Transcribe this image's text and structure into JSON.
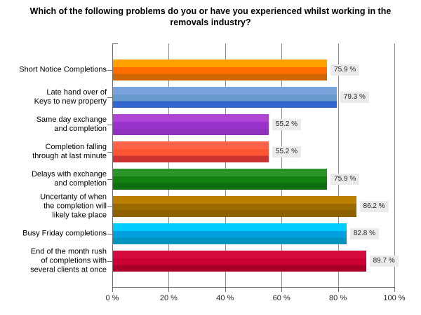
{
  "page": {
    "background": "#ffffff"
  },
  "chart_data": {
    "type": "bar",
    "orientation": "horizontal",
    "title": "Which of the following problems do you or have you experienced whilst working in the removals industry?",
    "categories": [
      "Short Notice Completions",
      "Late hand over of\nKeys to new property",
      "Same day exchange\nand completion",
      "Completion falling\nthrough at last minute",
      "Delays with exchange\nand completion",
      "Uncertanty of when\nthe completion will\nlikely take place",
      "Busy Friday completions",
      "End of the month rush\nof completions with\nseveral clients at once"
    ],
    "values": [
      75.9,
      79.3,
      55.2,
      55.2,
      75.9,
      86.2,
      82.8,
      89.7
    ],
    "value_labels": [
      "75.9 %",
      "79.3 %",
      "55.2 %",
      "55.2 %",
      "75.9 %",
      "86.2 %",
      "82.8 %",
      "89.7 %"
    ],
    "bar_colors": [
      {
        "light": "#FFA000",
        "mid": "#FF6D00",
        "dark": "#CE6700"
      },
      {
        "light": "#7AA3DC",
        "mid": "#6699CC",
        "dark": "#3366CC"
      },
      {
        "light": "#B044D4",
        "mid": "#9933CC",
        "dark": "#9030BF"
      },
      {
        "light": "#FF6249",
        "mid": "#FF5533",
        "dark": "#CC3333"
      },
      {
        "light": "#2B942B",
        "mid": "#128112",
        "dark": "#0E6F0E"
      },
      {
        "light": "#BC8000",
        "mid": "#9A6B00",
        "dark": "#8D6000"
      },
      {
        "light": "#00CCFF",
        "mid": "#009FE0",
        "dark": "#0093BD"
      },
      {
        "light": "#D30B3F",
        "mid": "#CC0033",
        "dark": "#A80029"
      }
    ],
    "xlabel": "",
    "ylabel": "",
    "x_ticks": [
      "0 %",
      "20 %",
      "40 %",
      "60 %",
      "80 %",
      "100 %"
    ],
    "xlim": [
      0,
      100
    ],
    "grid": true,
    "legend": "none",
    "value_label_bg": "#EBEBEB",
    "gridline_color": "#8F8F8F",
    "axis_color": "#6E6E6E"
  }
}
